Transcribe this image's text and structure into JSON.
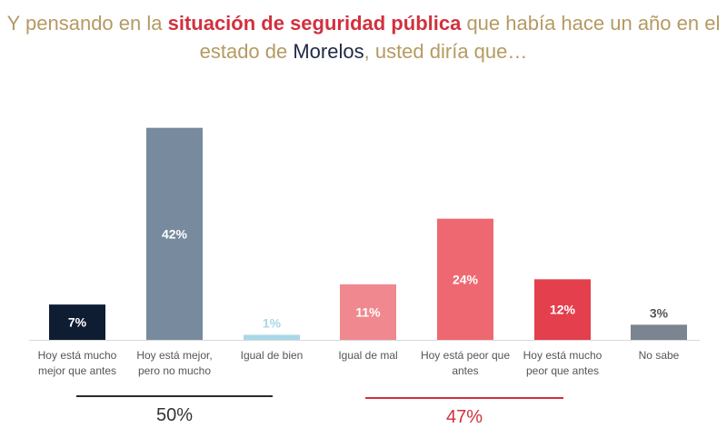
{
  "title": {
    "part1": "Y pensando en la ",
    "highlight": "situación de seguridad pública",
    "part2": " que había hace un año en el estado de ",
    "state": "Morelos",
    "part3": ", usted diría que…"
  },
  "chart_data": {
    "type": "bar",
    "title": "Y pensando en la situación de seguridad pública que había hace un año en el estado de Morelos, usted diría que…",
    "categories": [
      [
        "Hoy está mucho",
        "mejor que antes"
      ],
      [
        "Hoy está mejor,",
        "pero no mucho"
      ],
      [
        "Igual de bien"
      ],
      [
        "Igual de mal"
      ],
      [
        "Hoy está peor que",
        "antes"
      ],
      [
        "Hoy está mucho",
        "peor que antes"
      ],
      [
        "No sabe"
      ]
    ],
    "values": [
      7,
      42,
      1,
      11,
      24,
      12,
      3
    ],
    "labels": [
      "7%",
      "42%",
      "1%",
      "11%",
      "24%",
      "12%",
      "3%"
    ],
    "colors": [
      "#0f1d33",
      "#778a9e",
      "#a9d8e6",
      "#f0888f",
      "#ee6872",
      "#e33f4d",
      "#7b8591"
    ],
    "label_colors": [
      "#ffffff",
      "#ffffff",
      "#a9d8e6",
      "#ffffff",
      "#ffffff",
      "#ffffff",
      "#555555"
    ],
    "ylim": [
      0,
      45
    ],
    "groups": [
      {
        "label": "50%",
        "color": "#333333",
        "line_color": "#2b2b2b"
      },
      {
        "label": "47%",
        "color": "#d2303e",
        "line_color": "#d2303e"
      }
    ]
  }
}
